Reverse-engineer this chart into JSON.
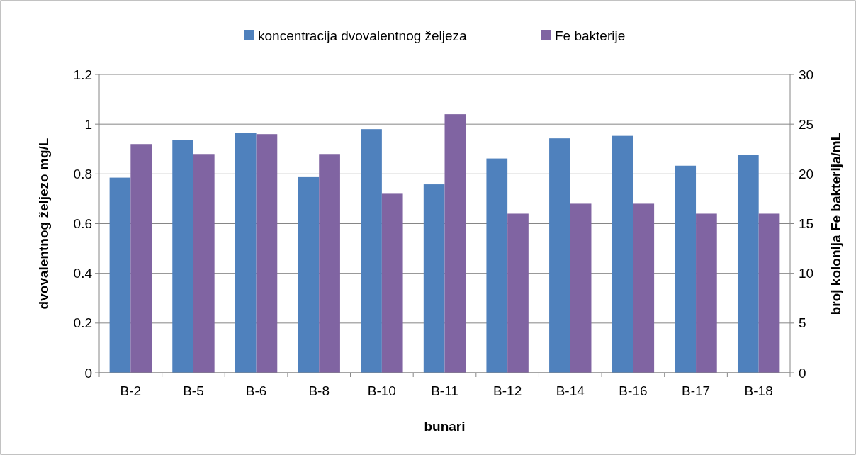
{
  "chart_data": {
    "type": "bar",
    "xlabel": "bunari",
    "ylabel": "dvovalentnog željezo mg/L",
    "y2label": "broj kolonija Fe bakterija/mL",
    "categories": [
      "B-2",
      "B-5",
      "B-6",
      "B-8",
      "B-10",
      "B-11",
      "B-12",
      "B-14",
      "B-16",
      "B-17",
      "B-18"
    ],
    "series": [
      {
        "name": "koncentracija dvovalentnog željeza",
        "color": "#4f81bd",
        "values": [
          0.785,
          0.935,
          0.965,
          0.787,
          0.98,
          0.758,
          0.862,
          0.943,
          0.953,
          0.833,
          0.876
        ]
      },
      {
        "name": "Fe bakterije",
        "color": "#8064a2",
        "axis": "y2",
        "values": [
          23,
          22,
          24,
          22,
          18,
          26,
          16,
          17,
          17,
          16,
          16
        ]
      }
    ],
    "ylim": [
      0,
      1.2
    ],
    "yticks": [
      0,
      0.2,
      0.4,
      0.6,
      0.8,
      1,
      1.2
    ],
    "y2lim": [
      0,
      30
    ],
    "y2ticks": [
      0,
      5,
      10,
      15,
      20,
      25,
      30
    ],
    "grid": "y",
    "legend": "top"
  }
}
